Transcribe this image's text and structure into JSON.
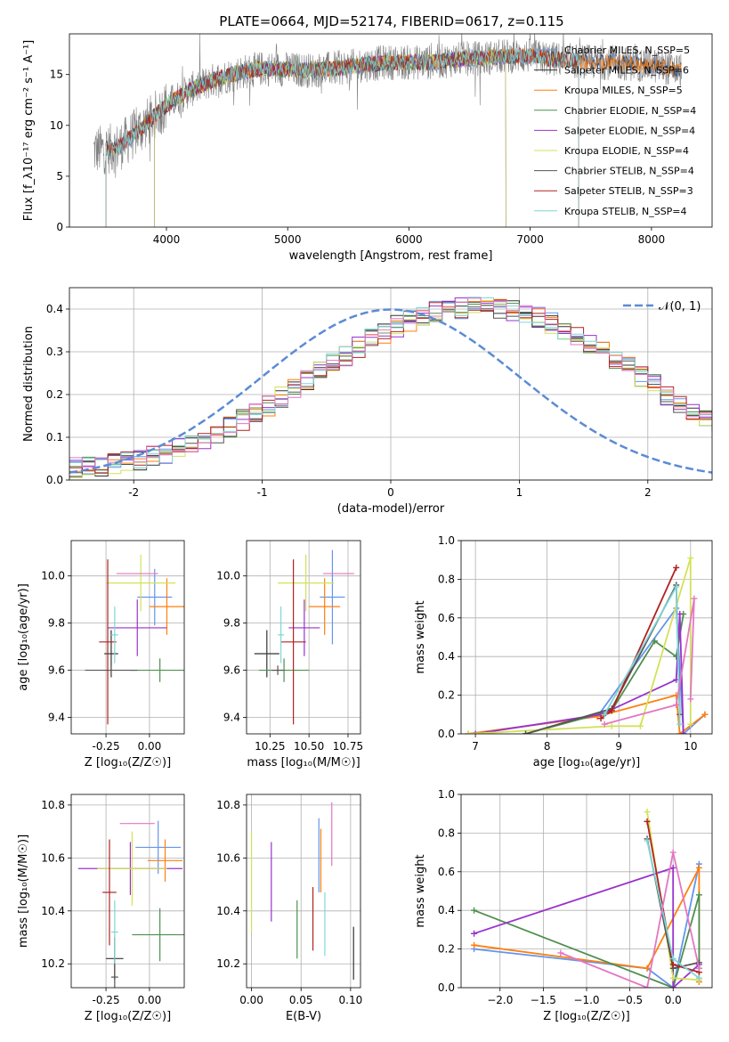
{
  "title": "PLATE=0664, MJD=52174, FIBERID=0617, z=0.115",
  "colors": {
    "chabrier_miles": "#6495ed",
    "salpeter_miles": "#333333",
    "kroupa_miles": "#ff7f0e",
    "chabrier_elodie": "#4f8f4f",
    "salpeter_elodie": "#9932cc",
    "kroupa_elodie": "#d4e157",
    "chabrier_stelib": "#555555",
    "salpeter_stelib": "#b22222",
    "kroupa_stelib": "#7fd6d6",
    "normal": "#5b8bd6",
    "pink": "#e377c2"
  },
  "chart_data": [
    {
      "id": "spectrum",
      "type": "line",
      "xlabel": "wavelength [Angstrom, rest frame]",
      "ylabel": "Flux [f_λ10⁻¹⁷ erg cm⁻² s⁻¹ A⁻¹]",
      "xlim": [
        3200,
        8500
      ],
      "ylim": [
        0,
        19
      ],
      "xticks": [
        4000,
        5000,
        6000,
        7000,
        8000
      ],
      "yticks": [
        0,
        5,
        10,
        15
      ],
      "legend_position": "top-right",
      "legend": [
        "Chabrier MILES, N_SSP=5",
        "Salpeter MILES, N_SSP=6",
        "Kroupa MILES, N_SSP=5",
        "Chabrier ELODIE, N_SSP=4",
        "Salpeter ELODIE, N_SSP=4",
        "Kroupa ELODIE, N_SSP=4",
        "Chabrier STELIB, N_SSP=4",
        "Salpeter STELIB, N_SSP=3",
        "Kroupa STELIB, N_SSP=4"
      ],
      "continuum": {
        "x": [
          3400,
          3600,
          3800,
          4000,
          4200,
          4400,
          4600,
          4800,
          5000,
          5200,
          5400,
          5600,
          5800,
          6000,
          6200,
          6400,
          6600,
          6800,
          7000,
          7200,
          7400,
          7600,
          7800,
          8000,
          8200
        ],
        "y": [
          7.5,
          7.8,
          9.8,
          12.0,
          13.5,
          14.5,
          15.2,
          15.6,
          15.5,
          15.4,
          15.6,
          15.9,
          16.2,
          16.2,
          16.2,
          16.5,
          16.6,
          16.8,
          16.8,
          16.5,
          16.3,
          16.2,
          16.1,
          15.9,
          15.5
        ]
      }
    },
    {
      "id": "residuals",
      "type": "histogram",
      "xlabel": "(data-model)/error",
      "ylabel": "Normed distribution",
      "xlim": [
        -2.5,
        2.5
      ],
      "ylim": [
        0,
        0.45
      ],
      "xticks": [
        -2,
        -1,
        0,
        1,
        2
      ],
      "yticks": [
        0.0,
        0.1,
        0.2,
        0.3,
        0.4
      ],
      "legend": [
        "𝒩(0, 1)"
      ],
      "legend_position": "top-right",
      "bin_edges_start": -2.5,
      "bin_width": 0.1,
      "base": [
        0.028,
        0.03,
        0.033,
        0.037,
        0.042,
        0.048,
        0.055,
        0.063,
        0.073,
        0.084,
        0.096,
        0.11,
        0.125,
        0.14,
        0.157,
        0.175,
        0.193,
        0.212,
        0.232,
        0.252,
        0.272,
        0.291,
        0.31,
        0.328,
        0.345,
        0.36,
        0.373,
        0.384,
        0.393,
        0.399,
        0.402,
        0.404,
        0.404,
        0.4,
        0.396,
        0.39,
        0.38,
        0.368,
        0.354,
        0.339,
        0.322,
        0.304,
        0.285,
        0.264,
        0.243,
        0.222,
        0.2,
        0.18,
        0.16,
        0.141,
        0.124,
        0.108,
        0.094,
        0.081,
        0.07,
        0.06,
        0.051,
        0.044,
        0.038,
        0.033
      ]
    },
    {
      "id": "age_vs_Z",
      "type": "errorbar",
      "xlabel": "Z [log₁₀(Z/Z☉)]",
      "ylabel": "age  [log₁₀(age/yr)]",
      "xlim": [
        -0.45,
        0.2
      ],
      "ylim": [
        9.33,
        10.15
      ],
      "xticks": [
        -0.25,
        0.0
      ],
      "yticks": [
        9.4,
        9.6,
        9.8,
        10.0
      ],
      "points": [
        {
          "key": "chabrier_miles",
          "x": 0.03,
          "y": 9.91,
          "xerr": 0.1,
          "yerr": 0.12
        },
        {
          "key": "salpeter_miles",
          "x": -0.22,
          "y": 9.67,
          "xerr": 0.04,
          "yerr": 0.1
        },
        {
          "key": "kroupa_miles",
          "x": 0.1,
          "y": 9.87,
          "xerr": 0.1,
          "yerr": 0.12
        },
        {
          "key": "chabrier_elodie",
          "x": 0.06,
          "y": 9.6,
          "xerr": 0.17,
          "yerr": 0.05
        },
        {
          "key": "salpeter_elodie",
          "x": -0.07,
          "y": 9.78,
          "xerr": 0.17,
          "yerr": 0.12
        },
        {
          "key": "kroupa_elodie",
          "x": -0.05,
          "y": 9.97,
          "xerr": 0.2,
          "yerr": 0.12
        },
        {
          "key": "chabrier_stelib",
          "x": -0.22,
          "y": 9.6,
          "xerr": 0.15,
          "yerr": 0.02
        },
        {
          "key": "salpeter_stelib",
          "x": -0.24,
          "y": 9.72,
          "xerr": 0.05,
          "yerr": 0.35
        },
        {
          "key": "kroupa_stelib",
          "x": -0.2,
          "y": 9.75,
          "xerr": 0.02,
          "yerr": 0.12
        },
        {
          "key": "pink",
          "x": -0.07,
          "y": 10.01,
          "xerr": 0.12,
          "yerr": 0.0
        }
      ]
    },
    {
      "id": "age_vs_mass",
      "type": "errorbar",
      "xlabel": "mass [log₁₀(M/M☉)]",
      "ylabel": "",
      "xlim": [
        10.1,
        10.83
      ],
      "ylim": [
        9.33,
        10.15
      ],
      "xticks": [
        10.25,
        10.5,
        10.75
      ],
      "yticks": [
        9.4,
        9.6,
        9.8,
        10.0
      ],
      "points": [
        {
          "key": "chabrier_miles",
          "x": 10.65,
          "y": 9.91,
          "xerr": 0.08,
          "yerr": 0.2
        },
        {
          "key": "salpeter_miles",
          "x": 10.23,
          "y": 9.67,
          "xerr": 0.08,
          "yerr": 0.1
        },
        {
          "key": "kroupa_miles",
          "x": 10.6,
          "y": 9.87,
          "xerr": 0.1,
          "yerr": 0.12
        },
        {
          "key": "chabrier_elodie",
          "x": 10.34,
          "y": 9.6,
          "xerr": 0.16,
          "yerr": 0.05
        },
        {
          "key": "salpeter_elodie",
          "x": 10.47,
          "y": 9.78,
          "xerr": 0.1,
          "yerr": 0.12
        },
        {
          "key": "kroupa_elodie",
          "x": 10.48,
          "y": 9.97,
          "xerr": 0.18,
          "yerr": 0.12
        },
        {
          "key": "chabrier_stelib",
          "x": 10.3,
          "y": 9.6,
          "xerr": 0.04,
          "yerr": 0.02
        },
        {
          "key": "salpeter_stelib",
          "x": 10.4,
          "y": 9.72,
          "xerr": 0.08,
          "yerr": 0.35
        },
        {
          "key": "kroupa_stelib",
          "x": 10.32,
          "y": 9.75,
          "xerr": 0.02,
          "yerr": 0.12
        },
        {
          "key": "pink",
          "x": 10.69,
          "y": 10.01,
          "xerr": 0.1,
          "yerr": 0.0
        }
      ]
    },
    {
      "id": "massweight_vs_age",
      "type": "line",
      "xlabel": "age  [log₁₀(age/yr)]",
      "ylabel": "mass weight",
      "xlim": [
        6.8,
        10.3
      ],
      "ylim": [
        0,
        1.0
      ],
      "xticks": [
        7,
        8,
        9,
        10
      ],
      "yticks": [
        0.0,
        0.2,
        0.4,
        0.6,
        0.8,
        1.0
      ],
      "series": [
        {
          "key": "chabrier_miles",
          "x": [
            6.9,
            8.7,
            9.8,
            9.9,
            10.2
          ],
          "y": [
            0.0,
            0.09,
            0.65,
            0.0,
            0.1
          ]
        },
        {
          "key": "kroupa_miles",
          "x": [
            6.9,
            8.7,
            9.8,
            9.85,
            10.2
          ],
          "y": [
            0.0,
            0.09,
            0.2,
            0.0,
            0.1
          ]
        },
        {
          "key": "chabrier_elodie",
          "x": [
            7.7,
            8.9,
            9.5,
            9.8,
            9.9
          ],
          "y": [
            0.0,
            0.12,
            0.48,
            0.4,
            0.62
          ]
        },
        {
          "key": "salpeter_elodie",
          "x": [
            7.0,
            8.75,
            9.8,
            9.85,
            9.9
          ],
          "y": [
            0.0,
            0.1,
            0.28,
            0.62,
            0.0
          ]
        },
        {
          "key": "kroupa_elodie",
          "x": [
            6.9,
            8.9,
            9.3,
            10.0,
            10.0
          ],
          "y": [
            0.0,
            0.04,
            0.04,
            0.91,
            0.05
          ]
        },
        {
          "key": "chabrier_stelib",
          "x": [
            7.7,
            8.9,
            9.8,
            9.85
          ],
          "y": [
            0.0,
            0.13,
            0.77,
            0.1
          ]
        },
        {
          "key": "salpeter_stelib",
          "x": [
            8.75,
            8.9,
            9.8
          ],
          "y": [
            0.08,
            0.12,
            0.86
          ]
        },
        {
          "key": "kroupa_stelib",
          "x": [
            8.8,
            9.8,
            9.85
          ],
          "y": [
            0.1,
            0.76,
            0.05
          ]
        },
        {
          "key": "pink",
          "x": [
            8.8,
            9.8,
            10.05,
            10.0
          ],
          "y": [
            0.05,
            0.15,
            0.7,
            0.18
          ]
        }
      ]
    },
    {
      "id": "mass_vs_Z",
      "type": "errorbar",
      "xlabel": "Z [log₁₀(Z/Z☉)]",
      "ylabel": "mass [log₁₀(M/M☉)]",
      "xlim": [
        -0.45,
        0.2
      ],
      "ylim": [
        10.11,
        10.84
      ],
      "xticks": [
        -0.25,
        0.0
      ],
      "yticks": [
        10.2,
        10.4,
        10.6,
        10.8
      ],
      "points": [
        {
          "key": "chabrier_miles",
          "x": 0.05,
          "y": 10.64,
          "xerr": 0.13,
          "yerr": 0.1
        },
        {
          "key": "salpeter_miles",
          "x": -0.2,
          "y": 10.22,
          "xerr": 0.05,
          "yerr": 0.08
        },
        {
          "key": "kroupa_miles",
          "x": 0.09,
          "y": 10.59,
          "xerr": 0.1,
          "yerr": 0.08
        },
        {
          "key": "chabrier_elodie",
          "x": 0.06,
          "y": 10.31,
          "xerr": 0.16,
          "yerr": 0.1
        },
        {
          "key": "salpeter_elodie",
          "x": -0.11,
          "y": 10.56,
          "xerr": 0.3,
          "yerr": 0.1
        },
        {
          "key": "kroupa_elodie",
          "x": -0.1,
          "y": 10.56,
          "xerr": 0.2,
          "yerr": 0.14
        },
        {
          "key": "chabrier_stelib",
          "x": -0.2,
          "y": 10.15,
          "xerr": 0.02,
          "yerr": 0.07
        },
        {
          "key": "salpeter_stelib",
          "x": -0.23,
          "y": 10.47,
          "xerr": 0.04,
          "yerr": 0.2
        },
        {
          "key": "kroupa_stelib",
          "x": -0.2,
          "y": 10.32,
          "xerr": 0.02,
          "yerr": 0.12
        },
        {
          "key": "pink",
          "x": -0.07,
          "y": 10.73,
          "xerr": 0.1,
          "yerr": 0.0
        }
      ]
    },
    {
      "id": "mass_vs_ebv",
      "type": "errorbar",
      "xlabel": "E(B-V)",
      "ylabel": "",
      "xlim": [
        -0.005,
        0.11
      ],
      "ylim": [
        10.11,
        10.84
      ],
      "xticks": [
        0.0,
        0.05,
        0.1
      ],
      "yticks": [
        10.2,
        10.4,
        10.6,
        10.8
      ],
      "points": [
        {
          "key": "chabrier_miles",
          "x": 0.068,
          "y": 10.61,
          "xerr": 0,
          "yerr": 0.14
        },
        {
          "key": "salpeter_miles",
          "x": 0.103,
          "y": 10.24,
          "xerr": 0,
          "yerr": 0.1
        },
        {
          "key": "kroupa_miles",
          "x": 0.07,
          "y": 10.59,
          "xerr": 0,
          "yerr": 0.12
        },
        {
          "key": "chabrier_elodie",
          "x": 0.046,
          "y": 10.33,
          "xerr": 0,
          "yerr": 0.11
        },
        {
          "key": "salpeter_elodie",
          "x": 0.02,
          "y": 10.51,
          "xerr": 0,
          "yerr": 0.15
        },
        {
          "key": "kroupa_elodie",
          "x": 0.0,
          "y": 10.51,
          "xerr": 0,
          "yerr": 0.19
        },
        {
          "key": "salpeter_stelib",
          "x": 0.062,
          "y": 10.37,
          "xerr": 0,
          "yerr": 0.12
        },
        {
          "key": "kroupa_stelib",
          "x": 0.074,
          "y": 10.35,
          "xerr": 0,
          "yerr": 0.12
        },
        {
          "key": "pink",
          "x": 0.081,
          "y": 10.69,
          "xerr": 0,
          "yerr": 0.12
        }
      ]
    },
    {
      "id": "massweight_vs_Z",
      "type": "line",
      "xlabel": "Z [log₁₀(Z/Z☉)]",
      "ylabel": "mass weight",
      "xlim": [
        -2.45,
        0.45
      ],
      "ylim": [
        0,
        1.0
      ],
      "xticks": [
        -2.0,
        -1.5,
        -1.0,
        -0.5,
        0.0
      ],
      "yticks": [
        0.0,
        0.2,
        0.4,
        0.6,
        0.8,
        1.0
      ],
      "series": [
        {
          "key": "chabrier_miles",
          "x": [
            -2.3,
            -0.3,
            0.0,
            0.3
          ],
          "y": [
            0.2,
            0.1,
            0.0,
            0.64
          ]
        },
        {
          "key": "kroupa_miles",
          "x": [
            -2.3,
            -0.3,
            0.3,
            0.3
          ],
          "y": [
            0.22,
            0.1,
            0.62,
            0.03
          ]
        },
        {
          "key": "chabrier_elodie",
          "x": [
            -2.3,
            0.0,
            0.3,
            0.3
          ],
          "y": [
            0.4,
            0.0,
            0.48,
            0.1
          ]
        },
        {
          "key": "salpeter_elodie",
          "x": [
            -2.3,
            0.0,
            0.0,
            0.3
          ],
          "y": [
            0.28,
            0.62,
            0.0,
            0.12
          ]
        },
        {
          "key": "kroupa_elodie",
          "x": [
            -0.3,
            0.0,
            0.3
          ],
          "y": [
            0.91,
            0.05,
            0.04
          ]
        },
        {
          "key": "chabrier_stelib",
          "x": [
            -0.3,
            0.0,
            0.3
          ],
          "y": [
            0.77,
            0.1,
            0.13
          ]
        },
        {
          "key": "salpeter_stelib",
          "x": [
            -0.3,
            0.0,
            0.3
          ],
          "y": [
            0.86,
            0.12,
            0.08
          ]
        },
        {
          "key": "kroupa_stelib",
          "x": [
            -0.3,
            0.0,
            0.3
          ],
          "y": [
            0.76,
            0.15,
            0.05
          ]
        },
        {
          "key": "pink",
          "x": [
            -1.3,
            -0.3,
            0.0,
            0.3
          ],
          "y": [
            0.18,
            0.0,
            0.7,
            0.1
          ]
        }
      ]
    }
  ]
}
